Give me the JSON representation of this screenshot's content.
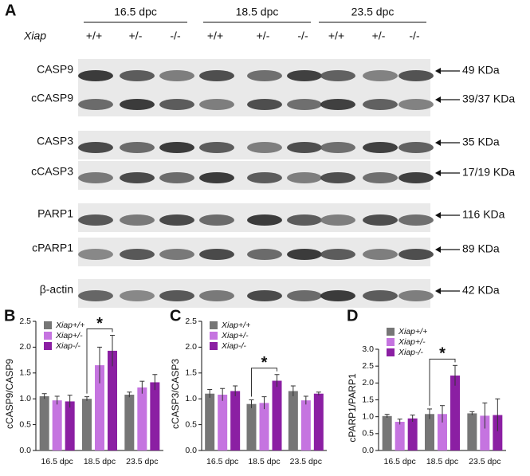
{
  "blot": {
    "panel": "A",
    "gene": "Xiap",
    "groups": [
      "16.5  dpc",
      "18.5 dpc",
      "23.5 dpc"
    ],
    "genotypes": [
      "+/+",
      "+/-",
      "-/-",
      "+/+",
      "+/-",
      "-/-",
      "+/+",
      "+/-",
      "-/-"
    ],
    "rows": [
      {
        "name": "CASP9",
        "size": "49 KDa"
      },
      {
        "name": "cCASP9",
        "size": "39/37 KDa"
      },
      {
        "name": "CASP3",
        "size": "35 KDa"
      },
      {
        "name": "cCASP3",
        "size": "17/19 KDa"
      },
      {
        "name": "PARP1",
        "size": "116 KDa"
      },
      {
        "name": "cPARP1",
        "size": "89 KDa"
      },
      {
        "name": "β-actin",
        "size": "42 KDa"
      }
    ]
  },
  "chart_data": [
    {
      "type": "bar",
      "label": "B",
      "y_label": "cCASP9/CASP9",
      "annotation": "*",
      "categories": [
        "16.5 dpc",
        "18.5 dpc",
        "23.5 dpc"
      ],
      "series": [
        {
          "name": "Xiap+/+",
          "color": "#767676",
          "values": [
            1.05,
            1.0,
            1.08
          ],
          "errors": [
            0.05,
            0.04,
            0.05
          ]
        },
        {
          "name": "Xiap+/-",
          "color": "#c574e0",
          "values": [
            0.97,
            1.65,
            1.22
          ],
          "errors": [
            0.08,
            0.35,
            0.12
          ]
        },
        {
          "name": "Xiap-/-",
          "color": "#8b1fa3",
          "values": [
            0.95,
            1.93,
            1.32
          ],
          "errors": [
            0.12,
            0.3,
            0.15
          ]
        }
      ],
      "ylim": [
        0,
        2.5
      ],
      "yticks": [
        {
          "value": 0,
          "label": "0.0"
        },
        0.5,
        {
          "value": 1,
          "label": "1.0"
        },
        1.5,
        {
          "value": 2,
          "label": "2.0"
        },
        2.5
      ]
    },
    {
      "type": "bar",
      "label": "C",
      "y_label": "cCASP3/CASP3",
      "annotation": "*",
      "categories": [
        "16.5 dpc",
        "18.5 dpc",
        "23.5 dpc"
      ],
      "series": [
        {
          "name": "Xiap+/+",
          "color": "#767676",
          "values": [
            1.1,
            0.9,
            1.15
          ],
          "errors": [
            0.08,
            0.08,
            0.1
          ]
        },
        {
          "name": "Xiap+/-",
          "color": "#c574e0",
          "values": [
            1.08,
            0.92,
            0.97
          ],
          "errors": [
            0.12,
            0.12,
            0.08
          ]
        },
        {
          "name": "Xiap-/-",
          "color": "#8b1fa3",
          "values": [
            1.15,
            1.35,
            1.1
          ],
          "errors": [
            0.1,
            0.12,
            0.03
          ]
        }
      ],
      "ylim": [
        0,
        2.5
      ],
      "yticks": [
        {
          "value": 0,
          "label": "0.0"
        },
        0.5,
        {
          "value": 1,
          "label": "1.0"
        },
        1.5,
        {
          "value": 2,
          "label": "2.0"
        },
        2.5
      ]
    },
    {
      "type": "bar",
      "label": "D",
      "y_label": "cPARP1/PARP1",
      "annotation": "*",
      "categories": [
        "16.5 dpc",
        "18.5 dpc",
        "23.5 dpc"
      ],
      "series": [
        {
          "name": "Xiap+/+",
          "color": "#767676",
          "values": [
            1.02,
            1.08,
            1.1
          ],
          "errors": [
            0.05,
            0.15,
            0.05
          ]
        },
        {
          "name": "Xiap+/-",
          "color": "#c574e0",
          "values": [
            0.85,
            1.08,
            1.03
          ],
          "errors": [
            0.08,
            0.25,
            0.38
          ]
        },
        {
          "name": "Xiap-/-",
          "color": "#8b1fa3",
          "values": [
            0.95,
            2.22,
            1.05
          ],
          "errors": [
            0.1,
            0.3,
            0.48
          ]
        }
      ],
      "ylim": [
        0,
        3
      ],
      "yticks": [
        {
          "value": 0,
          "label": "0.0"
        },
        0.5,
        {
          "value": 1,
          "label": "1.0"
        },
        1.5,
        {
          "value": 2,
          "label": "2.0"
        },
        2.5,
        {
          "value": 3,
          "label": "3.0"
        }
      ]
    }
  ]
}
